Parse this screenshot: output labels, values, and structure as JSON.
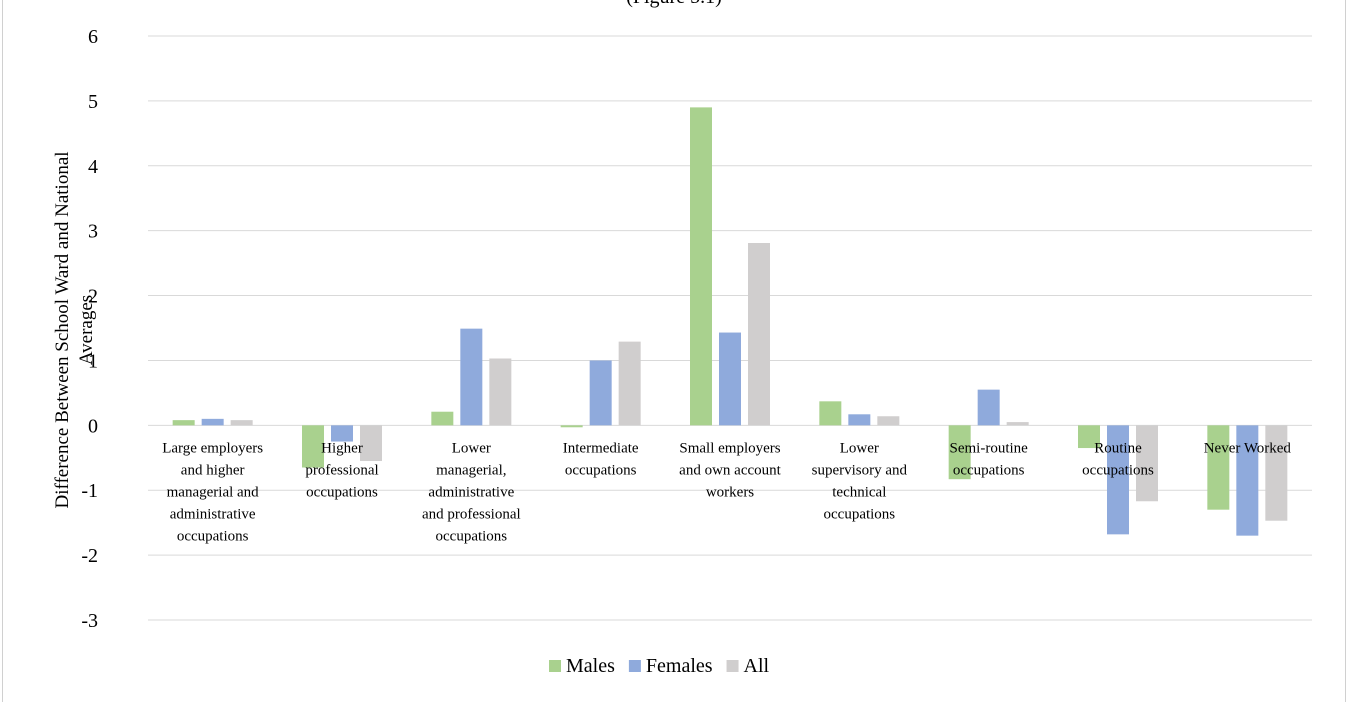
{
  "title_fragment": "(Figure 5.1)",
  "chart_data": {
    "type": "bar",
    "ylabel": "Difference Between School Ward and National Averages",
    "xlabel": "",
    "ylim": [
      -3,
      6
    ],
    "yticks": [
      6,
      5,
      4,
      3,
      2,
      1,
      0,
      -1,
      -2,
      -3
    ],
    "grid": true,
    "legend_position": "bottom",
    "categories": [
      "Large employers and higher managerial and administrative occupations",
      "Higher professional occupations",
      "Lower managerial, administrative and professional occupations",
      "Intermediate occupations",
      "Small employers and own account workers",
      "Lower supervisory and technical occupations",
      "Semi-routine occupations",
      "Routine occupations",
      "Never Worked"
    ],
    "category_lines": [
      [
        "Large employers",
        "and higher",
        "managerial and",
        "administrative",
        "occupations"
      ],
      [
        "Higher",
        "professional",
        "occupations"
      ],
      [
        "Lower",
        "managerial,",
        "administrative",
        "and professional",
        "occupations"
      ],
      [
        "Intermediate",
        "occupations"
      ],
      [
        "Small employers",
        "and own account",
        "workers"
      ],
      [
        "Lower",
        "supervisory and",
        "technical",
        "occupations"
      ],
      [
        "Semi-routine",
        "occupations"
      ],
      [
        "Routine",
        "occupations"
      ],
      [
        "Never Worked"
      ]
    ],
    "series": [
      {
        "name": "Males",
        "color": "#a9d18e",
        "values": [
          0.08,
          -0.65,
          0.21,
          -0.03,
          4.9,
          0.37,
          -0.83,
          -0.35,
          -1.3
        ]
      },
      {
        "name": "Females",
        "color": "#8faadc",
        "values": [
          0.1,
          -0.25,
          1.49,
          1.0,
          1.43,
          0.17,
          0.55,
          -1.68,
          -1.7
        ]
      },
      {
        "name": "All",
        "color": "#d0cece",
        "values": [
          0.08,
          -0.55,
          1.03,
          1.29,
          2.81,
          0.14,
          0.05,
          -1.17,
          -1.47
        ]
      }
    ]
  }
}
